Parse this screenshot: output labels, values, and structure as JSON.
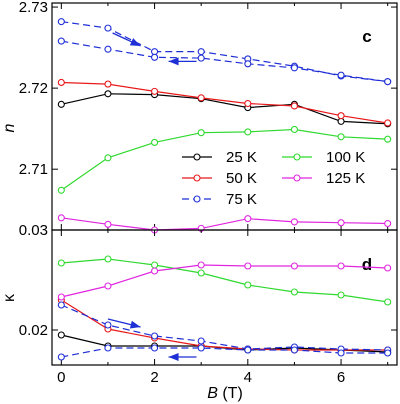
{
  "chart_data": [
    {
      "panel": "c",
      "type": "line",
      "panel_label": "c",
      "ylabel": "n",
      "xlim": [
        -0.2,
        7.2
      ],
      "ylim": [
        2.7025,
        2.7305
      ],
      "yticks": [
        {
          "value": 2.71,
          "label": "2.71"
        },
        {
          "value": 2.72,
          "label": "2.72"
        },
        {
          "value": 2.73,
          "label": "2.73"
        }
      ],
      "grid": false,
      "legend_placement": "bottom-center",
      "series": [
        {
          "name": "25 K",
          "color": "#000000",
          "dashed": false,
          "points": [
            [
              0,
              2.718
            ],
            [
              1,
              2.7193
            ],
            [
              2,
              2.7192
            ],
            [
              3,
              2.7187
            ],
            [
              4,
              2.7176
            ],
            [
              5,
              2.718
            ],
            [
              6,
              2.7159
            ],
            [
              7,
              2.7156
            ]
          ]
        },
        {
          "name": "50 K",
          "color": "#e8191b",
          "dashed": false,
          "points": [
            [
              0,
              2.7207
            ],
            [
              1,
              2.7205
            ],
            [
              2,
              2.7196
            ],
            [
              3,
              2.7188
            ],
            [
              4,
              2.7181
            ],
            [
              5,
              2.7178
            ],
            [
              6,
              2.7166
            ],
            [
              7,
              2.7157
            ]
          ]
        },
        {
          "name": "75 K",
          "color": "#1f2fd6",
          "dashed": true,
          "points": [
            [
              0,
              2.7282
            ],
            [
              1,
              2.7274
            ],
            [
              2,
              2.7245
            ],
            [
              3,
              2.7245
            ],
            [
              4,
              2.7236
            ],
            [
              5,
              2.7227
            ],
            [
              6,
              2.7215
            ],
            [
              7,
              2.7208
            ]
          ]
        },
        {
          "name": "75 K",
          "color": "#1f2fd6",
          "dashed": true,
          "points": [
            [
              0,
              2.7258
            ],
            [
              1,
              2.7248
            ],
            [
              2,
              2.7238
            ],
            [
              3,
              2.7237
            ],
            [
              4,
              2.723
            ],
            [
              5,
              2.7225
            ],
            [
              6,
              2.7216
            ],
            [
              7,
              2.7208
            ]
          ]
        },
        {
          "name": "100 K",
          "color": "#2fd92f",
          "dashed": false,
          "points": [
            [
              0,
              2.7074
            ],
            [
              1,
              2.7114
            ],
            [
              2,
              2.7133
            ],
            [
              3,
              2.7145
            ],
            [
              4,
              2.7146
            ],
            [
              5,
              2.7149
            ],
            [
              6,
              2.714
            ],
            [
              7,
              2.7137
            ]
          ]
        },
        {
          "name": "125 K",
          "color": "#e026e0",
          "dashed": false,
          "points": [
            [
              0,
              2.704
            ],
            [
              1,
              2.7032
            ],
            [
              2,
              2.7025
            ],
            [
              3,
              2.7027
            ],
            [
              4,
              2.7039
            ],
            [
              5,
              2.7035
            ],
            [
              6,
              2.7034
            ],
            [
              7,
              2.7033
            ]
          ]
        }
      ],
      "arrows": [
        {
          "from": [
            1.1,
            2.7268
          ],
          "to": [
            1.7,
            2.7252
          ]
        },
        {
          "from": [
            2.9,
            2.7233
          ],
          "to": [
            2.3,
            2.7233
          ]
        }
      ]
    },
    {
      "panel": "d",
      "type": "line",
      "panel_label": "d",
      "ylabel": "κ",
      "xlabel": "B (T)",
      "xlim": [
        -0.2,
        7.2
      ],
      "ylim": [
        0.0165,
        0.03
      ],
      "xticks": [
        {
          "value": 0,
          "label": "0"
        },
        {
          "value": 2,
          "label": "2"
        },
        {
          "value": 4,
          "label": "4"
        },
        {
          "value": 6,
          "label": "6"
        }
      ],
      "yticks": [
        {
          "value": 0.02,
          "label": "0.02"
        },
        {
          "value": 0.03,
          "label": "0.03"
        }
      ],
      "grid": false,
      "series": [
        {
          "name": "25 K",
          "color": "#000000",
          "dashed": false,
          "points": [
            [
              0,
              0.0195
            ],
            [
              1,
              0.0184
            ],
            [
              2,
              0.0184
            ],
            [
              3,
              0.0184
            ],
            [
              4,
              0.018
            ],
            [
              5,
              0.0182
            ],
            [
              6,
              0.018
            ],
            [
              7,
              0.0178
            ]
          ]
        },
        {
          "name": "50 K",
          "color": "#e8191b",
          "dashed": false,
          "points": [
            [
              0,
              0.023
            ],
            [
              1,
              0.0201
            ],
            [
              2,
              0.0192
            ],
            [
              3,
              0.0184
            ],
            [
              4,
              0.0181
            ],
            [
              5,
              0.018
            ],
            [
              6,
              0.018
            ],
            [
              7,
              0.018
            ]
          ]
        },
        {
          "name": "75 K",
          "color": "#1f2fd6",
          "dashed": true,
          "points": [
            [
              0,
              0.0225
            ],
            [
              1,
              0.0205
            ],
            [
              2,
              0.0194
            ],
            [
              3,
              0.0189
            ],
            [
              4,
              0.0181
            ],
            [
              5,
              0.0183
            ],
            [
              6,
              0.0181
            ],
            [
              7,
              0.018
            ]
          ]
        },
        {
          "name": "75 K",
          "color": "#1f2fd6",
          "dashed": true,
          "points": [
            [
              0,
              0.0173
            ],
            [
              1,
              0.0182
            ],
            [
              2,
              0.0182
            ],
            [
              3,
              0.0182
            ],
            [
              4,
              0.018
            ],
            [
              5,
              0.018
            ],
            [
              6,
              0.0177
            ],
            [
              7,
              0.0177
            ]
          ]
        },
        {
          "name": "100 K",
          "color": "#2fd92f",
          "dashed": false,
          "points": [
            [
              0,
              0.0267
            ],
            [
              1,
              0.0271
            ],
            [
              2,
              0.0265
            ],
            [
              3,
              0.0257
            ],
            [
              4,
              0.0245
            ],
            [
              5,
              0.0238
            ],
            [
              6,
              0.0235
            ],
            [
              7,
              0.0228
            ]
          ]
        },
        {
          "name": "125 K",
          "color": "#e026e0",
          "dashed": false,
          "points": [
            [
              0,
              0.0233
            ],
            [
              1,
              0.0244
            ],
            [
              2,
              0.0259
            ],
            [
              3,
              0.0265
            ],
            [
              4,
              0.0264
            ],
            [
              5,
              0.0264
            ],
            [
              6,
              0.0264
            ],
            [
              7,
              0.0262
            ]
          ]
        }
      ],
      "arrows": [
        {
          "from": [
            1.0,
            0.0211
          ],
          "to": [
            1.7,
            0.0203
          ]
        },
        {
          "from": [
            2.9,
            0.0173
          ],
          "to": [
            2.3,
            0.0173
          ]
        }
      ]
    }
  ],
  "legend": {
    "entries": [
      {
        "label": "25 K",
        "color": "#000000",
        "dashed": false
      },
      {
        "label": "100 K",
        "color": "#2fd92f",
        "dashed": false
      },
      {
        "label": "50 K",
        "color": "#e8191b",
        "dashed": false
      },
      {
        "label": "125 K",
        "color": "#e026e0",
        "dashed": false
      },
      {
        "label": "75 K",
        "color": "#1f2fd6",
        "dashed": true
      }
    ]
  }
}
